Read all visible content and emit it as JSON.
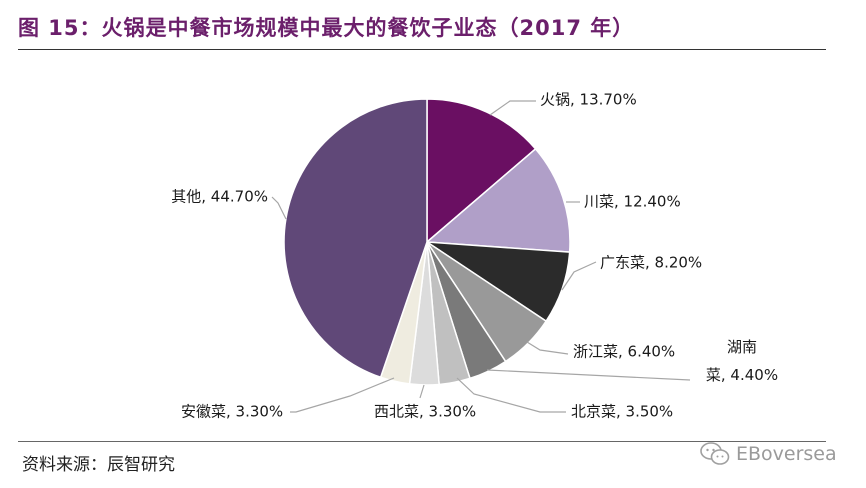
{
  "figure": {
    "title": "图 15：火锅是中餐市场规模中最大的餐饮子业态（2017 年）",
    "source": "资料来源：辰智研究",
    "watermark": "EBoversea"
  },
  "chart_data": {
    "type": "pie",
    "title": "",
    "slices": [
      {
        "label": "火锅",
        "value": 13.7,
        "display": "火锅, 13.70%",
        "color": "#6a0f62"
      },
      {
        "label": "川菜",
        "value": 12.4,
        "display": "川菜, 12.40%",
        "color": "#b09fc8"
      },
      {
        "label": "广东菜",
        "value": 8.2,
        "display": "广东菜, 8.20%",
        "color": "#2b2b2b"
      },
      {
        "label": "浙江菜",
        "value": 6.4,
        "display": "浙江菜, 6.40%",
        "color": "#999999"
      },
      {
        "label": "湖南菜",
        "value": 4.4,
        "display_lines": [
          "湖南",
          "菜, 4.40%"
        ],
        "color": "#7a7a7a"
      },
      {
        "label": "北京菜",
        "value": 3.5,
        "display": "北京菜, 3.50%",
        "color": "#c0c0c0"
      },
      {
        "label": "西北菜",
        "value": 3.3,
        "display": "西北菜, 3.30%",
        "color": "#dcdcdc"
      },
      {
        "label": "安徽菜",
        "value": 3.3,
        "display": "安徽菜, 3.30%",
        "color": "#efece0"
      },
      {
        "label": "其他",
        "value": 44.7,
        "display": "其他, 44.70%",
        "color": "#604878"
      }
    ]
  }
}
